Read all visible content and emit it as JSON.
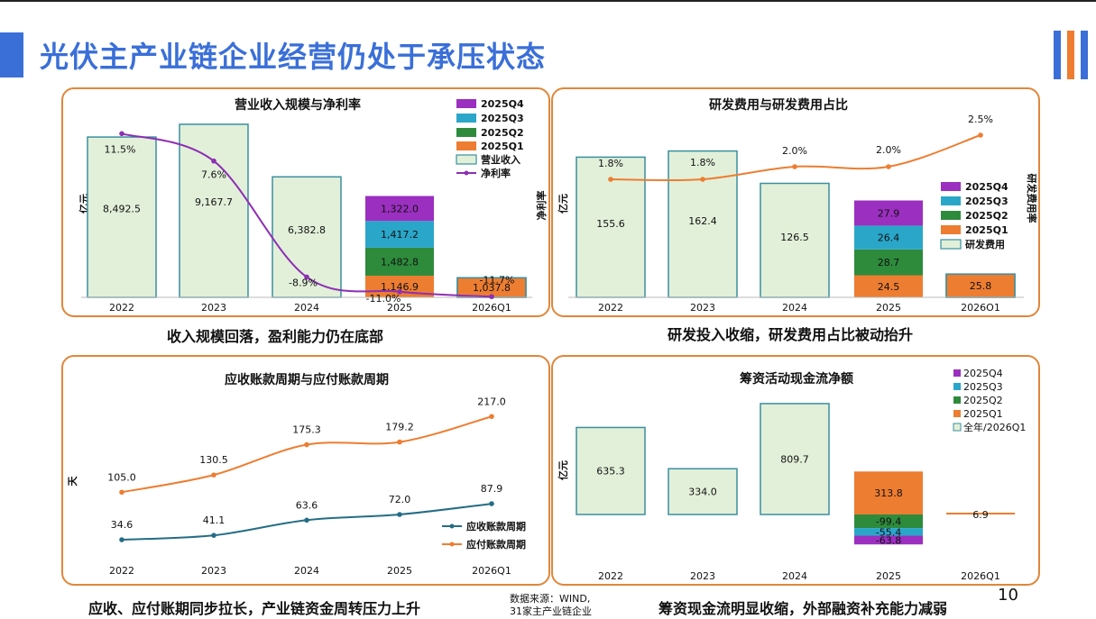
{
  "page": {
    "title": "光伏主产业链企业经营仍处于承压状态",
    "page_number": "10",
    "source_line1": "数据来源：WIND,",
    "source_line2": "31家主产业链企业",
    "colors": {
      "title": "#3a6fd8",
      "panel_border": "#e0873a",
      "bar_fill": "#e2f0d9",
      "bar_stroke": "#3a8fa0",
      "q1": "#ed7d31",
      "q2": "#2e8b3c",
      "q3": "#2aa6c9",
      "q4": "#9b2fc0",
      "line_purple": "#8e2fb4",
      "line_orange": "#ed7d31",
      "line_teal": "#246d85"
    }
  },
  "captions": {
    "c1": "收入规模回落，盈利能力仍在底部",
    "c2": "研发投入收缩，研发费用占比被动抬升",
    "c3": "应收、应付账期同步拉长，产业链资金周转压力上升",
    "c4": "筹资现金流明显收缩，外部融资补充能力减弱"
  },
  "chart_data": [
    {
      "type": "bar",
      "title": "营业收入规模与净利率",
      "ylabel": "亿元",
      "categories": [
        "2022",
        "2023",
        "2024",
        "2025",
        "2026Q1"
      ],
      "category_labels": [
        "2022",
        "2023",
        "2024",
        "2025",
        "2026Q1"
      ],
      "totals": [
        8492.5,
        9167.7,
        6382.8,
        null,
        1037.8
      ],
      "total_labels": [
        "8,492.5",
        "9,167.7",
        "6,382.8",
        "",
        "1,037.8"
      ],
      "stack_2025": {
        "values": [
          1146.9,
          1482.8,
          1417.2,
          1322.0
        ],
        "labels": [
          "1,146.9",
          "1,482.8",
          "1,417.2",
          "1,322.0"
        ],
        "series": [
          "2025Q1",
          "2025Q2",
          "2025Q3",
          "2025Q4"
        ]
      },
      "line": {
        "name": "净利率",
        "values": [
          11.5,
          7.6,
          -8.9,
          -11.0,
          -11.7
        ],
        "labels": [
          "11.5%",
          "7.6%",
          "-8.9%",
          "-11.0%",
          "-11.7%"
        ]
      },
      "legend": [
        "2025Q4",
        "2025Q3",
        "2025Q2",
        "2025Q1",
        "营业收入",
        "净利率"
      ],
      "legend_position": "top-right"
    },
    {
      "type": "bar",
      "title": "研发费用与研发费用占比",
      "ylabel": "亿元",
      "y2label": "研发费用率",
      "ylabel_left_extra": "净利率",
      "categories": [
        "2022",
        "2023",
        "2024",
        "2025",
        "2026Q1"
      ],
      "category_labels": [
        "2022",
        "2023",
        "2024",
        "2025",
        "2026O1"
      ],
      "totals": [
        155.6,
        162.4,
        126.5,
        null,
        25.8
      ],
      "total_labels": [
        "155.6",
        "162.4",
        "126.5",
        "",
        "25.8"
      ],
      "stack_2025": {
        "values": [
          24.5,
          28.7,
          26.4,
          27.9
        ],
        "labels": [
          "24.5",
          "28.7",
          "26.4",
          "27.9"
        ],
        "series": [
          "2025Q1",
          "2025Q2",
          "2025Q3",
          "2025Q4"
        ]
      },
      "line": {
        "name": "研发费用率",
        "values": [
          1.8,
          1.8,
          2.0,
          2.0,
          2.5
        ],
        "labels": [
          "1.8%",
          "1.8%",
          "2.0%",
          "2.0%",
          "2.5%"
        ]
      },
      "legend": [
        "2025Q4",
        "2025Q3",
        "2025Q2",
        "2025Q1",
        "研发费用"
      ],
      "legend_position": "right"
    },
    {
      "type": "line",
      "title": "应收账款周期与应付账款周期",
      "ylabel": "天",
      "categories": [
        "2022",
        "2023",
        "2024",
        "2025",
        "2026Q1"
      ],
      "series": [
        {
          "name": "应收账款周期",
          "values": [
            34.6,
            41.1,
            63.6,
            72.0,
            87.9
          ],
          "labels": [
            "34.6",
            "41.1",
            "63.6",
            "72.0",
            "87.9"
          ]
        },
        {
          "name": "应付账款周期",
          "values": [
            105.0,
            130.5,
            175.3,
            179.2,
            217.0
          ],
          "labels": [
            "105.0",
            "130.5",
            "175.3",
            "179.2",
            "217.0"
          ]
        }
      ],
      "legend_position": "bottom-right"
    },
    {
      "type": "bar",
      "title": "筹资活动现金流净额",
      "ylabel": "亿元",
      "categories": [
        "2022",
        "2023",
        "2024",
        "2025",
        "2026Q1"
      ],
      "totals": [
        635.3,
        334.0,
        809.7,
        null,
        6.9
      ],
      "total_labels": [
        "635.3",
        "334.0",
        "809.7",
        "",
        "6.9"
      ],
      "stack_2025": {
        "values": [
          313.8,
          -99.4,
          -55.4,
          -63.8
        ],
        "labels": [
          "313.8",
          "-99.4",
          "-55.4",
          "-63.8"
        ],
        "series": [
          "2025Q1",
          "2025Q2",
          "2025Q3",
          "2025Q4"
        ]
      },
      "legend": [
        "2025Q4",
        "2025Q3",
        "2025Q2",
        "2025Q1",
        "全年/2026Q1"
      ],
      "legend_position": "top-right"
    }
  ]
}
